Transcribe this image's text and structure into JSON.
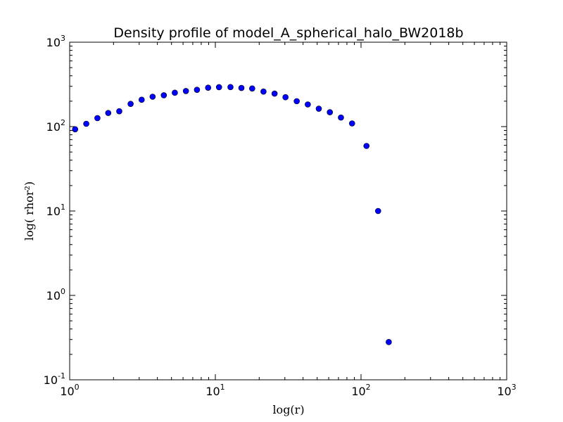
{
  "chart_data": {
    "type": "scatter",
    "title": "Density profile of model_A_spherical_halo_BW2018b",
    "xlabel": "log(r)",
    "ylabel": "log( rhor²)",
    "xscale": "log",
    "yscale": "log",
    "xlim": [
      1,
      1000
    ],
    "ylim": [
      0.1,
      1000
    ],
    "x_ticks": [
      {
        "value": 1,
        "base": "10",
        "exp": "0"
      },
      {
        "value": 10,
        "base": "10",
        "exp": "1"
      },
      {
        "value": 100,
        "base": "10",
        "exp": "2"
      },
      {
        "value": 1000,
        "base": "10",
        "exp": "3"
      }
    ],
    "y_ticks": [
      {
        "value": 0.1,
        "base": "10",
        "exp": "-1"
      },
      {
        "value": 1,
        "base": "10",
        "exp": "0"
      },
      {
        "value": 10,
        "base": "10",
        "exp": "1"
      },
      {
        "value": 100,
        "base": "10",
        "exp": "2"
      },
      {
        "value": 1000,
        "base": "10",
        "exp": "3"
      }
    ],
    "grid": false,
    "marker_color": "#0000ff",
    "series": [
      {
        "x": [
          1.09,
          1.3,
          1.55,
          1.84,
          2.19,
          2.62,
          3.12,
          3.71,
          4.43,
          5.27,
          6.28,
          7.48,
          8.92,
          10.6,
          12.7,
          15.1,
          17.9,
          21.4,
          25.5,
          30.3,
          36.2,
          43.1,
          51.3,
          61.1,
          72.8,
          86.8,
          109,
          131,
          155
        ],
        "y": [
          93,
          108,
          126,
          145,
          152,
          186,
          208,
          226,
          235,
          252,
          264,
          273,
          289,
          293,
          294,
          287,
          283,
          260,
          246,
          223,
          200,
          183,
          163,
          148,
          128,
          109,
          59,
          10,
          0.28
        ]
      }
    ]
  }
}
